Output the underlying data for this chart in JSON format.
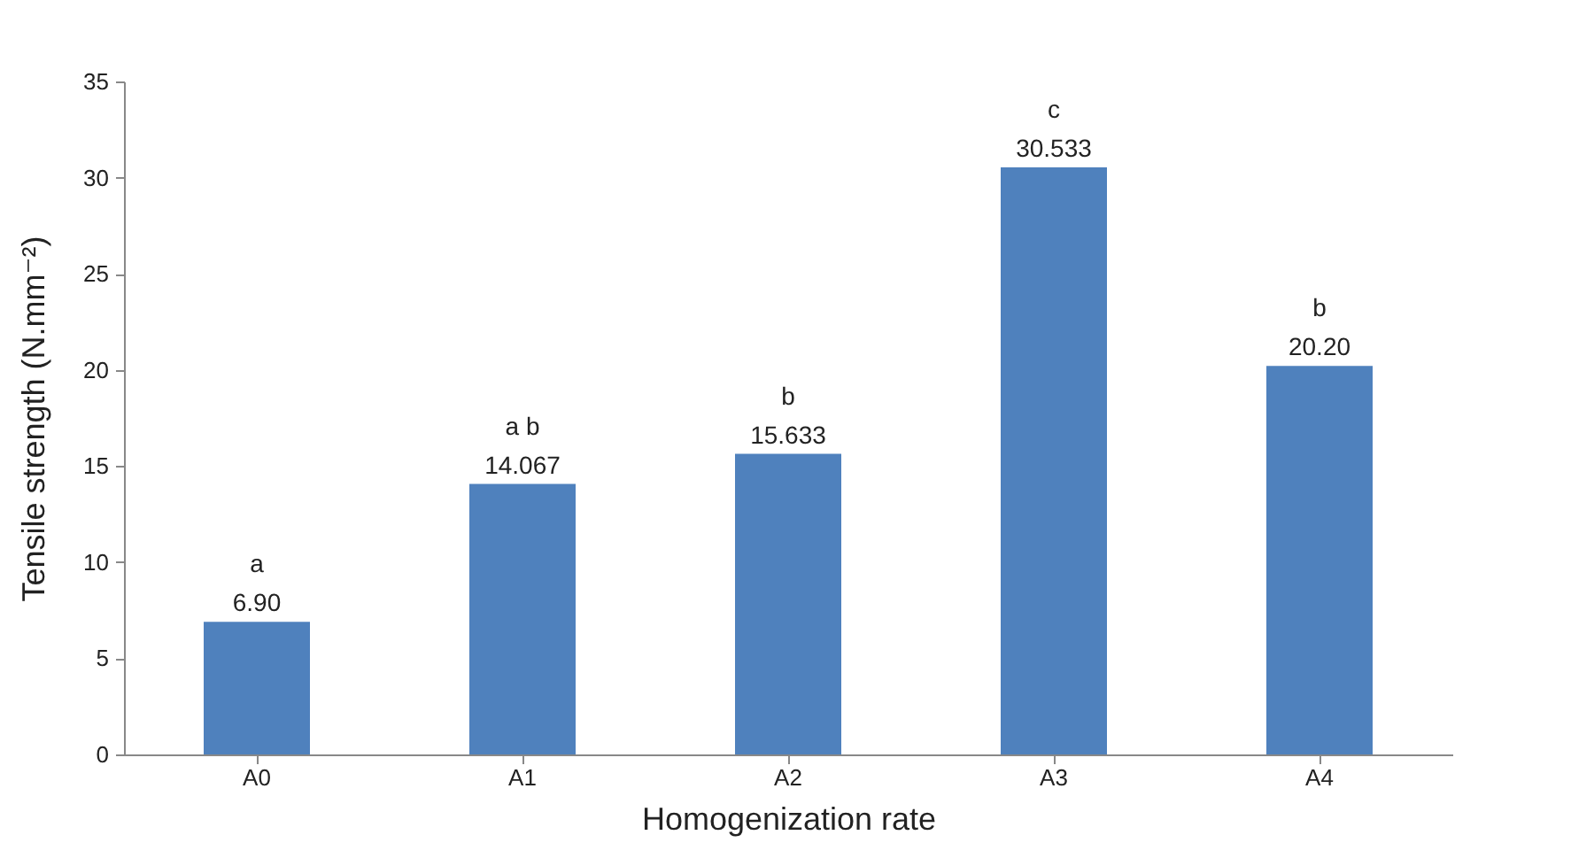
{
  "chart_data": {
    "type": "bar",
    "xlabel": "Homogenization rate",
    "ylabel": "Tensile strength (N.mm⁻²)",
    "categories": [
      "A0",
      "A1",
      "A2",
      "A3",
      "A4"
    ],
    "values": [
      6.9,
      14.067,
      15.633,
      30.533,
      20.2
    ],
    "value_labels": [
      "6.90",
      "14.067",
      "15.633",
      "30.533",
      "20.20"
    ],
    "color": "#4f81bd",
    "ylim": [
      0,
      35
    ],
    "yticks": [
      0,
      5,
      10,
      15,
      20,
      25,
      30,
      35
    ],
    "grid": false,
    "annotations": [
      {
        "text": "a",
        "x": "A0",
        "y": 6.9
      },
      {
        "text": "a b",
        "x": "A1",
        "y": 14.067
      },
      {
        "text": "b",
        "x": "A2",
        "y": 15.633
      },
      {
        "text": "c",
        "x": "A3",
        "y": 30.533
      },
      {
        "text": "b",
        "x": "A4",
        "y": 20.2
      }
    ]
  }
}
